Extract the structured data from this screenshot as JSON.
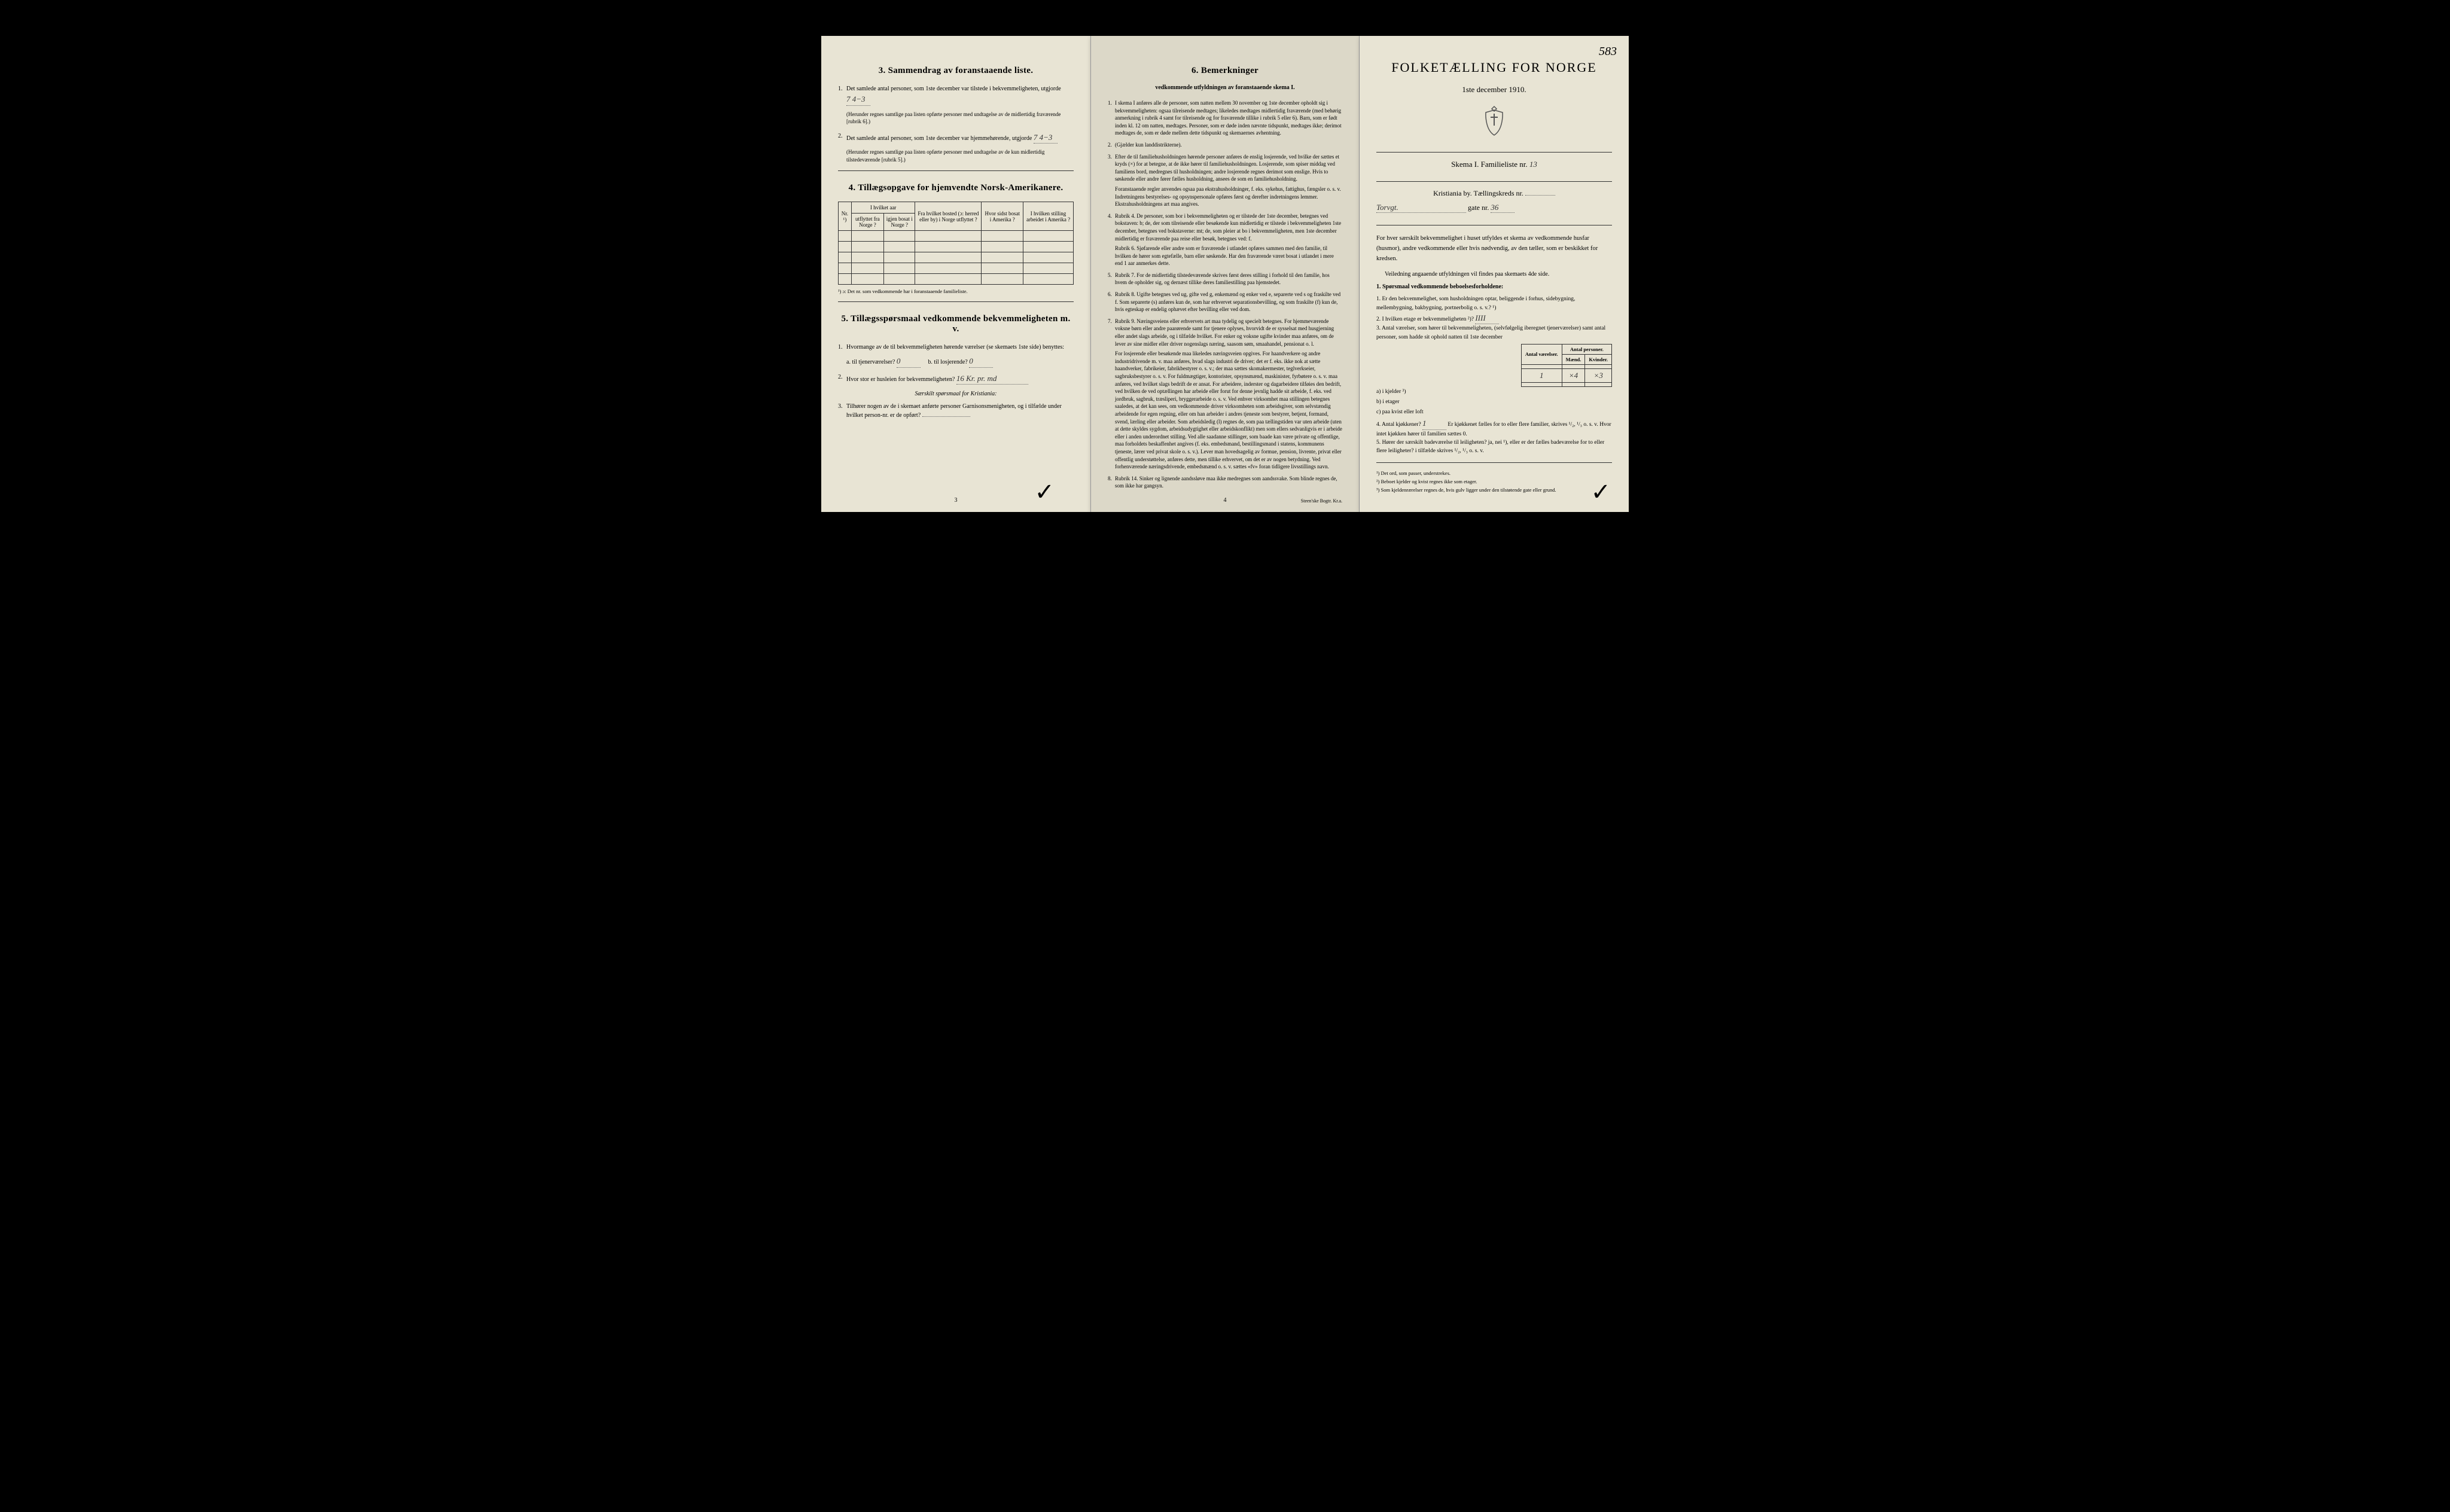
{
  "corner_number": "583",
  "left_page": {
    "section3_title": "3.   Sammendrag av foranstaaende liste.",
    "item1": "Det samlede antal personer, som 1ste december var tilstede i bekvemmeligheten, utgjorde",
    "item1_value": "7        4−3",
    "item1_note": "(Herunder regnes samtlige paa listen opførte personer med undtagelse av de midlertidig fraværende [rubrik 6].)",
    "item2": "Det samlede antal personer, som 1ste december var hjemmehørende, utgjorde",
    "item2_value": "7        4−3",
    "item2_note": "(Herunder regnes samtlige paa listen opførte personer med undtagelse av de kun midlertidig tilstedeværende [rubrik 5].)",
    "section4_title": "4.   Tillægsopgave for hjemvendte Norsk-Amerikanere.",
    "table4_headers": {
      "nr": "Nr. ¹)",
      "hvilket_aar": "I hvilket aar",
      "utflyttet": "utflyttet fra Norge ?",
      "igjen": "igjen bosat i Norge ?",
      "fra_hvilket": "Fra hvilket bosted (ɔ: herred eller by) i Norge utflyttet ?",
      "hvor_sidst": "Hvor sidst bosat i Amerika ?",
      "hvilken_stilling": "I hvilken stilling arbeidet i Amerika ?"
    },
    "table4_footnote": "¹) ɔ:  Det nr. som vedkommende har i foranstaaende familieliste.",
    "section5_title": "5.   Tillægsspørsmaal vedkommende bekvemmeligheten m. v.",
    "q1": "Hvormange av de til bekvemmeligheten hørende værelser (se skemaets 1ste side) benyttes:",
    "q1a_label": "a.  til tjenerværelser?",
    "q1a_value": "0",
    "q1b_label": "b.  til losjerende?",
    "q1b_value": "0",
    "q2": "Hvor stor er husleien for bekvemmeligheten?",
    "q2_value": "16 Kr.  pr. md",
    "q2_note": "Særskilt spørsmaal for Kristiania:",
    "q3": "Tilhører nogen av de i skemaet anførte personer Garnisonsmenigheten, og i tilfælde under hvilket person-nr. er de opført?",
    "page_num": "3"
  },
  "middle_page": {
    "section6_title": "6.   Bemerkninger",
    "section6_sub": "vedkommende utfyldningen av foranstaaende skema I.",
    "items": [
      {
        "n": "1.",
        "t": "I skema I anføres alle de personer, som natten mellem 30 november og 1ste december opholdt sig i bekvemmeligheten: ogsaa tilreisende medtages; likeledes medtages midlertidig fraværende (med behørig anmerkning i rubrik 4 samt for tilreisende og for fraværende tillike i rubrik 5 eller 6). Barn, som er født inden kl. 12 om natten, medtages. Personer, som er døde inden nævnte tidspunkt, medtages ikke; derimot medtages de, som er døde mellem dette tidspunkt og skemaernes avhentning."
      },
      {
        "n": "2.",
        "t": "(Gjælder kun landdistrikterne)."
      },
      {
        "n": "3.",
        "t": "Efter de til familiehusholdningen hørende personer anføres de enslig losjerende, ved hvilke der sættes et kryds (×) for at betegne, at de ikke hører til familiehusholdningen. Losjerende, som spiser middag ved familiens bord, medregnes til husholdningen; andre losjerende regnes derimot som enslige. Hvis to søskende eller andre fører fælles husholdning, ansees de som en familiehusholdning.",
        "sub": "Foranstaaende regler anvendes ogsaa paa ekstrahusholdninger, f. eks. sykehus, fattighus, fængsler o. s. v. Indretningens bestyrelses- og opsynspersonale opføres først og derefter indretningens lemmer. Ekstrahusholdningens art maa angives."
      },
      {
        "n": "4.",
        "t": "Rubrik 4. De personer, som bor i bekvemmeligheten og er tilstede der 1ste december, betegnes ved bokstaven: b; de, der som tilreisende eller besøkende kun midlertidig er tilstede i bekvemmeligheten 1ste december, betegnes ved bokstaverne: mt; de, som pleier at bo i bekvemmeligheten, men 1ste december midlertidig er fraværende paa reise eller besøk, betegnes ved: f.",
        "sub": "Rubrik 6. Sjøfarende eller andre som er fraværende i utlandet opføres sammen med den familie, til hvilken de hører som egtefælle, barn eller søskende. Har den fraværende været bosat i utlandet i mere end 1 aar anmerkes dette."
      },
      {
        "n": "5.",
        "t": "Rubrik 7. For de midlertidig tilstedeværende skrives først deres stilling i forhold til den familie, hos hvem de opholder sig, og dernæst tillike deres familiestilling paa hjemstedet."
      },
      {
        "n": "6.",
        "t": "Rubrik 8. Ugifte betegnes ved ug, gifte ved g, enkemænd og enker ved e, separerte ved s og fraskilte ved f. Som separerte (s) anføres kun de, som har erhvervet separationsbevilling, og som fraskilte (f) kun de, hvis egteskap er endelig ophævet efter bevilling eller ved dom."
      },
      {
        "n": "7.",
        "t": "Rubrik 9. Næringsveiens eller erhvervets art maa tydelig og specielt betegnes. For hjemmeværende voksne børn eller andre paarørende samt for tjenere oplyses, hvorvidt de er sysselsat med husgjerning eller andet slags arbeide, og i tilfælde hvilket. For enker og voksne ugifte kvinder maa anføres, om de lever av sine midler eller driver nogenslags næring, saasom søm, smaahandel, pensionat o. l.",
        "sub": "For losjerende eller besøkende maa likeledes næringsveien opgives. For haandverkere og andre industridrivende m. v. maa anføres, hvad slags industri de driver; det er f. eks. ikke nok at sætte haandverker, fabrikeier, fabrikbestyrer o. s. v.; der maa sættes skomakermester, teglverkseier, sagbruksbestyrer o. s. v. For fuldmægtiger, kontorister, opsynsmænd, maskinister, fyrbøtere o. s. v. maa anføres, ved hvilket slags bedrift de er ansat. For arbeidere, inderster og dagarbeidere tilføies den bedrift, ved hvilken de ved optællingen har arbeide eller forut for denne jevnlig hadde sit arbeide, f. eks. ved jordbruk, sagbruk, træsliperi, bryggerarbeide o. s. v. Ved enhver virksomhet maa stillingen betegnes saaledes, at det kan sees, om vedkommende driver virksomheten som arbeidsgiver, som selvstændig arbeidende for egen regning, eller om han arbeider i andres tjeneste som bestyrer, betjent, formand, svend, lærling eller arbeider. Som arbeidsledig (l) regnes de, som paa tællingstiden var uten arbeide (uten at dette skyldes sygdom, arbeidsudygtighet eller arbeidskonflikt) men som ellers sedvanligvis er i arbeide eller i anden underordnet stilling. Ved alle saadanne stillinger, som baade kan være private og offentlige, maa forholdets beskaffenhet angives (f. eks. embedsmand, bestillingsmand i statens, kommunens tjeneste, lærer ved privat skole o. s. v.). Lever man hovedsagelig av formue, pension, livrente, privat eller offentlig understøttelse, anføres dette, men tillike erhvervet, om det er av nogen betydning. Ved forhenværende næringsdrivende, embedsmænd o. s. v. sættes «fv» foran tidligere livsstillings navn."
      },
      {
        "n": "8.",
        "t": "Rubrik 14. Sinker og lignende aandssløve maa ikke medregnes som aandssvake. Som blinde regnes de, som ikke har gangsyn."
      }
    ],
    "page_num": "4",
    "printer": "Steen'ske Bogtr.  Kr.a."
  },
  "right_page": {
    "main_title": "FOLKETÆLLING FOR NORGE",
    "subtitle": "1ste december 1910.",
    "skema": "Skema I.    Familieliste nr.",
    "skema_value": "13",
    "location": "Kristiania by.   Tællingskreds nr.",
    "street": "Torvgt.",
    "gate_label": "gate nr.",
    "gate_value": "36",
    "intro": "For hver særskilt bekvemmelighet i huset utfyldes et skema av vedkommende husfar (husmor), andre vedkommende eller hvis nødvendig, av den tæller, som er beskikket for kredsen.",
    "intro_note": "Veiledning angaaende utfyldningen vil findes paa skemaets 4de side.",
    "q1_title": "1. Spørsmaal vedkommende beboelsesforholdene:",
    "q1_1": "1. Er den bekvemmelighet, som husholdningen optar, beliggende i forhus, sidebygning, mellembygning, bakbygning, portnerbolig o. s. v.? ¹)",
    "q1_2": "2. I hvilken etage er bekvemmeligheten ²)?",
    "q1_2_value": "IIII",
    "q1_3": "3. Antal værelser, som hører til bekvemmeligheten, (selvfølgelig iberegnet tjenerværelser) samt antal personer, som hadde sit ophold natten til 1ste december",
    "table_headers": {
      "antal_v": "Antal værelser.",
      "antal_p": "Antal personer.",
      "mand": "Mænd.",
      "kvinder": "Kvinder."
    },
    "rows": {
      "a": "a)  i kjelder ³)",
      "b": "b)  i  etager",
      "b_v": "1",
      "b_m": "×4",
      "b_k": "×3",
      "c": "c)  paa kvist eller loft"
    },
    "q1_4": "4. Antal kjøkkener?",
    "q1_4_value": "1",
    "q1_4_tail": "Er kjøkkenet fælles for to eller flere familier, skrives ¹/₂, ¹/₃ o. s. v.   Hvor intet kjøkken hører til familien sættes 0.",
    "q1_5": "5. Hører der særskilt badeværelse til leiligheten?  ja,  nei ¹), eller er der fælles badeværelse for to eller flere leiligheter?  i tilfælde skrives ¹/₂, ¹/₃ o. s. v.",
    "footnotes": {
      "f1": "¹)  Det ord, som passer, understrekes.",
      "f2": "²)  Beboet kjelder og kvist regnes ikke som etager.",
      "f3": "³)  Som kjeldenrærelser regnes de, hvis gulv ligger under den tilstøtende gate eller grund."
    }
  }
}
